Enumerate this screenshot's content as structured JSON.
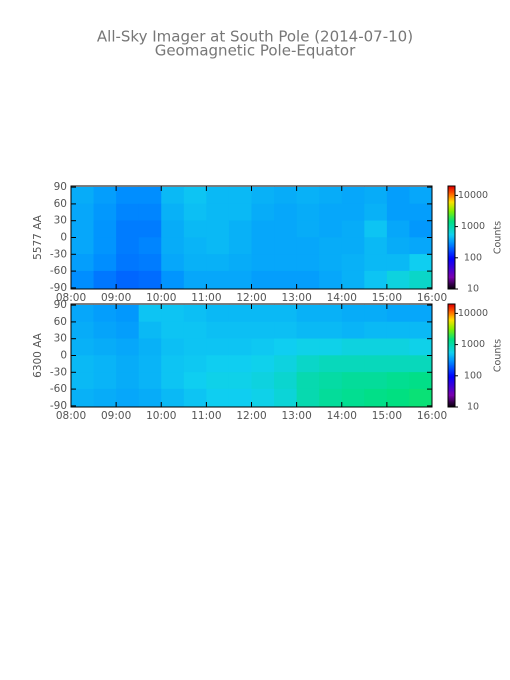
{
  "title": "All-Sky Imager at South Pole (2014-07-10)",
  "subtitle": "Geomagnetic Pole-Equator",
  "chart_data": [
    {
      "type": "heatmap",
      "ylabel": "5577 AA",
      "colorbar_label": "Counts",
      "x": [
        8.25,
        8.75,
        9.25,
        9.75,
        10.25,
        10.75,
        11.25,
        11.75,
        12.25,
        12.75,
        13.25,
        13.75,
        14.25,
        14.75,
        15.25,
        15.75
      ],
      "y": [
        75,
        45,
        15,
        -15,
        -45,
        -75
      ],
      "values": [
        [
          400,
          350,
          300,
          300,
          450,
          500,
          450,
          450,
          420,
          400,
          420,
          400,
          380,
          400,
          350,
          380
        ],
        [
          380,
          330,
          280,
          280,
          420,
          480,
          450,
          450,
          400,
          380,
          400,
          380,
          380,
          420,
          350,
          350
        ],
        [
          380,
          320,
          260,
          260,
          400,
          450,
          450,
          420,
          380,
          380,
          400,
          380,
          400,
          500,
          380,
          330
        ],
        [
          380,
          320,
          260,
          280,
          400,
          430,
          450,
          420,
          380,
          380,
          380,
          400,
          400,
          450,
          400,
          380
        ],
        [
          350,
          300,
          250,
          260,
          380,
          420,
          420,
          400,
          380,
          380,
          380,
          400,
          420,
          450,
          450,
          550
        ],
        [
          300,
          250,
          220,
          230,
          320,
          380,
          380,
          380,
          350,
          350,
          350,
          380,
          420,
          500,
          650,
          800
        ]
      ],
      "xlim": [
        8,
        16
      ],
      "xticks": [
        {
          "value": 8,
          "label": "08:00"
        },
        {
          "value": 9,
          "label": "09:00"
        },
        {
          "value": 10,
          "label": "10:00"
        },
        {
          "value": 11,
          "label": "11:00"
        },
        {
          "value": 12,
          "label": "12:00"
        },
        {
          "value": 13,
          "label": "13:00"
        },
        {
          "value": 14,
          "label": "14:00"
        },
        {
          "value": 15,
          "label": "15:00"
        },
        {
          "value": 16,
          "label": "16:00"
        }
      ],
      "ylim": [
        -92,
        92
      ],
      "yticks": [
        90,
        60,
        30,
        0,
        -30,
        -60,
        -90
      ],
      "zlim": [
        10,
        20000
      ],
      "zticks": [
        10,
        100,
        1000,
        10000
      ],
      "z_log_scale": true,
      "colorscale": [
        [
          0,
          "#000000"
        ],
        [
          0.12,
          "#7a00b0"
        ],
        [
          0.3,
          "#0000ff"
        ],
        [
          0.45,
          "#0090ff"
        ],
        [
          0.53,
          "#10d0f0"
        ],
        [
          0.66,
          "#00e080"
        ],
        [
          0.76,
          "#80f000"
        ],
        [
          0.85,
          "#ffe000"
        ],
        [
          0.93,
          "#ff6000"
        ],
        [
          1,
          "#e00000"
        ]
      ]
    },
    {
      "type": "heatmap",
      "ylabel": "6300 AA",
      "colorbar_label": "Counts",
      "x": [
        8.25,
        8.75,
        9.25,
        9.75,
        10.25,
        10.75,
        11.25,
        11.75,
        12.25,
        12.75,
        13.25,
        13.75,
        14.25,
        14.75,
        15.25,
        15.75
      ],
      "y": [
        75,
        45,
        15,
        -15,
        -45,
        -75
      ],
      "values": [
        [
          380,
          350,
          330,
          500,
          500,
          480,
          450,
          450,
          450,
          450,
          420,
          420,
          400,
          400,
          380,
          380
        ],
        [
          400,
          370,
          350,
          450,
          500,
          500,
          480,
          480,
          480,
          480,
          450,
          450,
          430,
          450,
          450,
          450
        ],
        [
          420,
          400,
          380,
          420,
          480,
          500,
          500,
          500,
          520,
          550,
          600,
          600,
          650,
          650,
          650,
          600
        ],
        [
          450,
          430,
          400,
          430,
          500,
          520,
          550,
          550,
          580,
          650,
          800,
          900,
          900,
          900,
          900,
          900
        ],
        [
          450,
          430,
          400,
          430,
          500,
          550,
          600,
          600,
          650,
          750,
          1000,
          1100,
          1200,
          1200,
          1300,
          1400
        ],
        [
          420,
          400,
          380,
          400,
          450,
          500,
          550,
          550,
          600,
          700,
          1000,
          1200,
          1300,
          1400,
          1500,
          1600
        ]
      ],
      "xlim": [
        8,
        16
      ],
      "xticks": [
        {
          "value": 8,
          "label": "08:00"
        },
        {
          "value": 9,
          "label": "09:00"
        },
        {
          "value": 10,
          "label": "10:00"
        },
        {
          "value": 11,
          "label": "11:00"
        },
        {
          "value": 12,
          "label": "12:00"
        },
        {
          "value": 13,
          "label": "13:00"
        },
        {
          "value": 14,
          "label": "14:00"
        },
        {
          "value": 15,
          "label": "15:00"
        },
        {
          "value": 16,
          "label": "16:00"
        }
      ],
      "ylim": [
        -92,
        92
      ],
      "yticks": [
        90,
        60,
        30,
        0,
        -30,
        -60,
        -90
      ],
      "zlim": [
        10,
        20000
      ],
      "zticks": [
        10,
        100,
        1000,
        10000
      ],
      "z_log_scale": true,
      "colorscale": [
        [
          0,
          "#000000"
        ],
        [
          0.12,
          "#7a00b0"
        ],
        [
          0.3,
          "#0000ff"
        ],
        [
          0.45,
          "#0090ff"
        ],
        [
          0.53,
          "#10d0f0"
        ],
        [
          0.66,
          "#00e080"
        ],
        [
          0.76,
          "#80f000"
        ],
        [
          0.85,
          "#ffe000"
        ],
        [
          0.93,
          "#ff6000"
        ],
        [
          1,
          "#e00000"
        ]
      ]
    }
  ]
}
